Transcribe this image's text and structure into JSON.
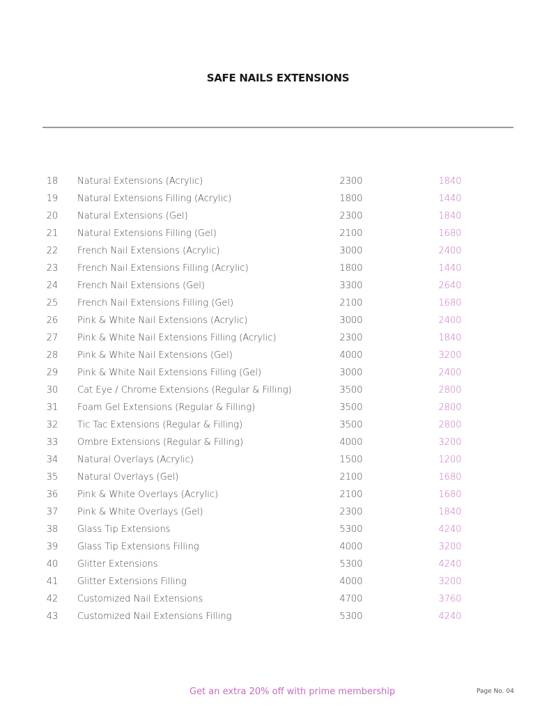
{
  "title": "SAFE NAILS EXTENSIONS",
  "accent_color": "#c56cc0",
  "rows": [
    {
      "no": "18",
      "name": "Natural Extensions (Acrylic)",
      "price": "2300",
      "member_price": "1840"
    },
    {
      "no": "19",
      "name": "Natural Extensions Filling (Acrylic)",
      "price": "1800",
      "member_price": "1440"
    },
    {
      "no": "20",
      "name": "Natural Extensions (Gel)",
      "price": "2300",
      "member_price": "1840"
    },
    {
      "no": "21",
      "name": "Natural Extensions Filling (Gel)",
      "price": "2100",
      "member_price": "1680"
    },
    {
      "no": "22",
      "name": "French Nail Extensions (Acrylic)",
      "price": "3000",
      "member_price": "2400"
    },
    {
      "no": "23",
      "name": "French Nail Extensions Filling (Acrylic)",
      "price": "1800",
      "member_price": "1440"
    },
    {
      "no": "24",
      "name": "French Nail Extensions (Gel)",
      "price": "3300",
      "member_price": "2640"
    },
    {
      "no": "25",
      "name": "French Nail Extensions Filling (Gel)",
      "price": "2100",
      "member_price": "1680"
    },
    {
      "no": "26",
      "name": "Pink & White Nail Extensions (Acrylic)",
      "price": "3000",
      "member_price": "2400"
    },
    {
      "no": "27",
      "name": "Pink & White Nail Extensions Filling (Acrylic)",
      "price": "2300",
      "member_price": "1840"
    },
    {
      "no": "28",
      "name": "Pink & White Nail Extensions (Gel)",
      "price": "4000",
      "member_price": "3200"
    },
    {
      "no": "29",
      "name": "Pink & White Nail Extensions Filling (Gel)",
      "price": "3000",
      "member_price": "2400"
    },
    {
      "no": "30",
      "name": "Cat Eye / Chrome Extensions (Regular & Filling)",
      "price": "3500",
      "member_price": "2800"
    },
    {
      "no": "31",
      "name": "Foam Gel Extensions (Regular & Filling)",
      "price": "3500",
      "member_price": "2800"
    },
    {
      "no": "32",
      "name": "Tic Tac Extensions (Regular & Filling)",
      "price": "3500",
      "member_price": "2800"
    },
    {
      "no": "33",
      "name": "Ombre Extensions (Regular & Filling)",
      "price": "4000",
      "member_price": "3200"
    },
    {
      "no": "34",
      "name": "Natural Overlays (Acrylic)",
      "price": "1500",
      "member_price": "1200"
    },
    {
      "no": "35",
      "name": "Natural Overlays (Gel)",
      "price": "2100",
      "member_price": "1680"
    },
    {
      "no": "36",
      "name": "Pink & White Overlays (Acrylic)",
      "price": "2100",
      "member_price": "1680"
    },
    {
      "no": "37",
      "name": "Pink & White Overlays (Gel)",
      "price": "2300",
      "member_price": "1840"
    },
    {
      "no": "38",
      "name": "Glass Tip Extensions",
      "price": "5300",
      "member_price": "4240"
    },
    {
      "no": "39",
      "name": "Glass Tip Extensions Filling",
      "price": "4000",
      "member_price": "3200"
    },
    {
      "no": "40",
      "name": "Glitter Extensions",
      "price": "5300",
      "member_price": "4240"
    },
    {
      "no": "41",
      "name": "Glitter Extensions Filling",
      "price": "4000",
      "member_price": "3200"
    },
    {
      "no": "42",
      "name": "Customized Nail Extensions",
      "price": "4700",
      "member_price": "3760"
    },
    {
      "no": "43",
      "name": "Customized Nail Extensions Filling",
      "price": "5300",
      "member_price": "4240"
    }
  ],
  "footer": {
    "promo": "Get an extra 20% off with prime membership",
    "page": "Page No. 04"
  }
}
